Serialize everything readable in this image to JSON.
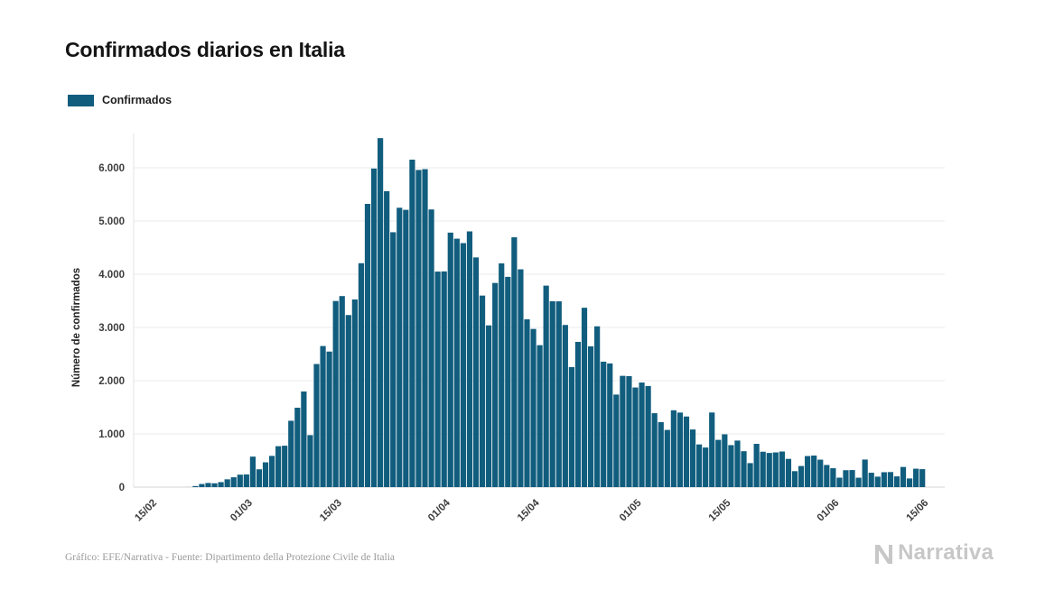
{
  "page": {
    "title": "Confirmados diarios en Italia",
    "footer_credit": "Gráfico: EFE/Narrativa - Fuente: Dipartimento della Protezione Civile de Italia",
    "brand": "Narrativa"
  },
  "legend": {
    "label": "Confirmados",
    "color": "#115d7e"
  },
  "chart_data": {
    "type": "bar",
    "title": "Confirmados diarios en Italia",
    "xlabel": "",
    "ylabel": "Número de confirmados",
    "series_name": "Confirmados",
    "bar_color": "#115d7e",
    "grid": true,
    "legend_position": "top-left",
    "ylim": [
      0,
      6600
    ],
    "y_ticks": [
      "0",
      "1.000",
      "2.000",
      "3.000",
      "4.000",
      "5.000",
      "6.000"
    ],
    "x_ticks": [
      "15/02",
      "01/03",
      "15/03",
      "01/04",
      "15/04",
      "01/05",
      "15/05",
      "01/06",
      "15/06"
    ],
    "dates": [
      "15/02",
      "16/02",
      "17/02",
      "18/02",
      "19/02",
      "20/02",
      "21/02",
      "22/02",
      "23/02",
      "24/02",
      "25/02",
      "26/02",
      "27/02",
      "28/02",
      "29/02",
      "01/03",
      "02/03",
      "03/03",
      "04/03",
      "05/03",
      "06/03",
      "07/03",
      "08/03",
      "09/03",
      "10/03",
      "11/03",
      "12/03",
      "13/03",
      "14/03",
      "15/03",
      "16/03",
      "17/03",
      "18/03",
      "19/03",
      "20/03",
      "21/03",
      "22/03",
      "23/03",
      "24/03",
      "25/03",
      "26/03",
      "27/03",
      "28/03",
      "29/03",
      "30/03",
      "31/03",
      "01/04",
      "02/04",
      "03/04",
      "04/04",
      "05/04",
      "06/04",
      "07/04",
      "08/04",
      "09/04",
      "10/04",
      "11/04",
      "12/04",
      "13/04",
      "14/04",
      "15/04",
      "16/04",
      "17/04",
      "18/04",
      "19/04",
      "20/04",
      "21/04",
      "22/04",
      "23/04",
      "24/04",
      "25/04",
      "26/04",
      "27/04",
      "28/04",
      "29/04",
      "30/04",
      "01/05",
      "02/05",
      "03/05",
      "04/05",
      "05/05",
      "06/05",
      "07/05",
      "08/05",
      "09/05",
      "10/05",
      "11/05",
      "12/05",
      "13/05",
      "14/05",
      "15/05",
      "16/05",
      "17/05",
      "18/05",
      "19/05",
      "20/05",
      "21/05",
      "22/05",
      "23/05",
      "24/05",
      "25/05",
      "26/05",
      "27/05",
      "28/05",
      "29/05",
      "30/05",
      "31/05",
      "01/06",
      "02/06",
      "03/06",
      "04/06",
      "05/06",
      "06/06",
      "07/06",
      "08/06",
      "09/06",
      "10/06",
      "11/06",
      "12/06",
      "13/06",
      "14/06"
    ],
    "values": [
      0,
      0,
      0,
      0,
      0,
      1,
      20,
      59,
      78,
      72,
      94,
      147,
      185,
      234,
      239,
      573,
      335,
      466,
      587,
      769,
      778,
      1247,
      1492,
      1797,
      977,
      2313,
      2651,
      2547,
      3497,
      3590,
      3233,
      3526,
      4207,
      5322,
      5986,
      6557,
      5560,
      4789,
      5249,
      5210,
      6153,
      5959,
      5974,
      5217,
      4050,
      4053,
      4782,
      4668,
      4585,
      4805,
      4316,
      3599,
      3039,
      3836,
      4204,
      3951,
      4694,
      4092,
      3153,
      2972,
      2667,
      3786,
      3493,
      3491,
      3047,
      2256,
      2729,
      3370,
      2646,
      3021,
      2357,
      2324,
      1739,
      2091,
      2086,
      1872,
      1965,
      1900,
      1389,
      1221,
      1075,
      1444,
      1401,
      1327,
      1083,
      802,
      744,
      1402,
      888,
      992,
      789,
      875,
      675,
      451,
      813,
      665,
      642,
      652,
      669,
      531,
      300,
      397,
      584,
      593,
      516,
      416,
      355,
      178,
      318,
      321,
      177,
      518,
      270,
      197,
      280,
      283,
      202,
      379,
      163,
      346,
      338
    ]
  }
}
